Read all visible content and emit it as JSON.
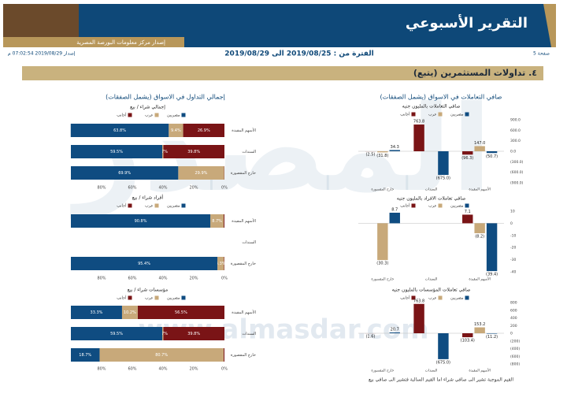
{
  "header": {
    "title": "التقرير الأسبوعي",
    "subtitle": "إصدار مركز معلومات البورصة المصرية",
    "page": "صفحة 5",
    "period": "الفترة من : 2019/08/25 الى 2019/08/29",
    "issued": "إصدار 2019/08/29 07:02:54 م"
  },
  "section": "٤. تداولات المستثمرين (يتبع)",
  "columns": {
    "left": "إجمالي التداول في الاسواق (يشمل الصفقات)",
    "right": "صافي التعاملات في الاسواق (يشمل الصفقات)"
  },
  "footnote": "القيم الموجبة تشير الى صافي شراء اما القيم السالبة فتشير الى صافي بيع",
  "watermark": {
    "logo": "المصدر",
    "url": "www.almasdar.com"
  },
  "chart_data": [
    {
      "type": "hbar_stacked",
      "title": "إجمالي شراء / بيع",
      "categories": [
        "الأسهم المقيدة",
        "السندات",
        "خارج المقصورة"
      ],
      "x_reversed": true,
      "xlim": [
        0,
        100
      ],
      "xticks": [
        {
          "value": 80,
          "label": "80%"
        },
        {
          "value": 60,
          "label": "60%"
        },
        {
          "value": 40,
          "label": "40%"
        },
        {
          "value": 20,
          "label": "20%"
        },
        {
          "value": 0,
          "label": "0%"
        }
      ],
      "series": [
        {
          "name": "مصريين",
          "color": "#0f4c81",
          "values": [
            63.8,
            59.5,
            69.9
          ],
          "value_labels": [
            "63.8%",
            "59.5%",
            "69.9%"
          ]
        },
        {
          "name": "عرب",
          "color": "#c8a97a",
          "values": [
            9.4,
            0.7,
            29.9
          ],
          "value_labels": [
            "9.4%",
            "0.7%",
            "29.9%"
          ]
        },
        {
          "name": "أجانب",
          "color": "#7a1416",
          "values": [
            26.9,
            39.8,
            0.2
          ],
          "value_labels": [
            "26.9%",
            "39.8%",
            null
          ]
        }
      ]
    },
    {
      "type": "hbar_stacked",
      "title": "أفراد شراء / بيع",
      "categories": [
        "الأسهم المقيدة",
        "السندات",
        "خارج المقصورة"
      ],
      "x_reversed": true,
      "xlim": [
        0,
        100
      ],
      "xticks": [
        {
          "value": 80,
          "label": "80%"
        },
        {
          "value": 60,
          "label": "60%"
        },
        {
          "value": 40,
          "label": "40%"
        },
        {
          "value": 20,
          "label": "20%"
        },
        {
          "value": 0,
          "label": "0%"
        }
      ],
      "series": [
        {
          "name": "مصريين",
          "color": "#0f4c81",
          "values": [
            90.8,
            0,
            95.4
          ],
          "value_labels": [
            "90.8%",
            null,
            "95.4%"
          ]
        },
        {
          "name": "عرب",
          "color": "#c8a97a",
          "values": [
            8.7,
            0,
            4.3
          ],
          "value_labels": [
            "8.7%",
            null,
            "4.3%"
          ]
        },
        {
          "name": "أجانب",
          "color": "#7a1416",
          "values": [
            0.5,
            0,
            0.3
          ],
          "value_labels": [
            null,
            null,
            null
          ]
        }
      ]
    },
    {
      "type": "hbar_stacked",
      "title": "مؤسسات شراء / بيع",
      "categories": [
        "الأسهم المقيدة",
        "السندات",
        "خارج المقصورة"
      ],
      "x_reversed": true,
      "xlim": [
        0,
        100
      ],
      "xticks": [
        {
          "value": 80,
          "label": "80%"
        },
        {
          "value": 60,
          "label": "60%"
        },
        {
          "value": 40,
          "label": "40%"
        },
        {
          "value": 20,
          "label": "20%"
        },
        {
          "value": 0,
          "label": "0%"
        }
      ],
      "series": [
        {
          "name": "مصريين",
          "color": "#0f4c81",
          "values": [
            33.3,
            59.5,
            18.7
          ],
          "value_labels": [
            "33.3%",
            "59.5%",
            "18.7%"
          ]
        },
        {
          "name": "عرب",
          "color": "#c8a97a",
          "values": [
            10.2,
            0.7,
            80.7
          ],
          "value_labels": [
            "10.2%",
            "0.7%",
            "80.7%"
          ]
        },
        {
          "name": "أجانب",
          "color": "#7a1416",
          "values": [
            56.5,
            39.8,
            0.6
          ],
          "value_labels": [
            "56.5%",
            "39.8%",
            null
          ]
        }
      ]
    },
    {
      "type": "bar",
      "title": "صافي التعاملات بالمليون جنيه",
      "categories": [
        "خارج المقصورة",
        "السندات",
        "الأسهم المقيدة"
      ],
      "ylim": [
        -900,
        900
      ],
      "yticks": [
        {
          "value": 900,
          "label": "900.0"
        },
        {
          "value": 600,
          "label": "600.0"
        },
        {
          "value": 300,
          "label": "300.0"
        },
        {
          "value": 0,
          "label": "0.0"
        },
        {
          "value": -300,
          "label": "(300.0)"
        },
        {
          "value": -600,
          "label": "(600.0)"
        },
        {
          "value": -900,
          "label": "(900.0)"
        }
      ],
      "series": [
        {
          "name": "مصريين",
          "color": "#0f4c81",
          "values": [
            34.3,
            -675.0,
            -50.7
          ],
          "value_labels": [
            "34.3",
            "(675.0)",
            "(50.7)"
          ]
        },
        {
          "name": "عرب",
          "color": "#c8a97a",
          "values": [
            -31.8,
            0,
            147.0
          ],
          "value_labels": [
            "(31.8)",
            null,
            "147.0"
          ]
        },
        {
          "name": "أجانب",
          "color": "#7a1416",
          "values": [
            -2.5,
            763.8,
            -96.3
          ],
          "value_labels": [
            "(2.5)",
            "763.8",
            "(96.3)"
          ]
        }
      ]
    },
    {
      "type": "bar",
      "title": "صافي تعاملات الافراد بالمليون جنيه",
      "categories": [
        "خارج المقصورة",
        "السندات",
        "الأسهم المقيدة"
      ],
      "ylim": [
        -40,
        10
      ],
      "yticks": [
        10,
        0,
        -10,
        -20,
        -30,
        -40
      ],
      "series": [
        {
          "name": "مصريين",
          "color": "#0f4c81",
          "values": [
            8.7,
            0,
            -39.4
          ],
          "value_labels": [
            "8.7",
            null,
            "(39.4)"
          ]
        },
        {
          "name": "عرب",
          "color": "#c8a97a",
          "values": [
            -30.3,
            0,
            -8.2
          ],
          "value_labels": [
            "(30.3)",
            null,
            "(8.2)"
          ]
        },
        {
          "name": "أجانب",
          "color": "#7a1416",
          "values": [
            0,
            0,
            7.1
          ],
          "value_labels": [
            null,
            null,
            "7.1"
          ]
        }
      ]
    },
    {
      "type": "bar",
      "title": "صافي تعاملات المؤسسات بالمليون جنيه",
      "categories": [
        "خارج المقصورة",
        "السندات",
        "الأسهم المقيدة"
      ],
      "ylim": [
        -800,
        800
      ],
      "yticks": [
        800,
        600,
        400,
        200,
        0,
        {
          "value": -200,
          "label": "(200)"
        },
        {
          "value": -400,
          "label": "(400)"
        },
        {
          "value": -600,
          "label": "(600)"
        },
        {
          "value": -800,
          "label": "(800)"
        }
      ],
      "series": [
        {
          "name": "مصريين",
          "color": "#0f4c81",
          "values": [
            20.7,
            -675.0,
            -11.2
          ],
          "value_labels": [
            "20.7",
            "(675.0)",
            "(11.2)"
          ]
        },
        {
          "name": "عرب",
          "color": "#c8a97a",
          "values": [
            0,
            0,
            153.2
          ],
          "value_labels": [
            null,
            null,
            "153.2"
          ]
        },
        {
          "name": "أجانب",
          "color": "#7a1416",
          "values": [
            -1.6,
            763.8,
            -103.4
          ],
          "value_labels": [
            "(1.6)",
            "763.8",
            "(103.4)"
          ]
        }
      ]
    }
  ]
}
